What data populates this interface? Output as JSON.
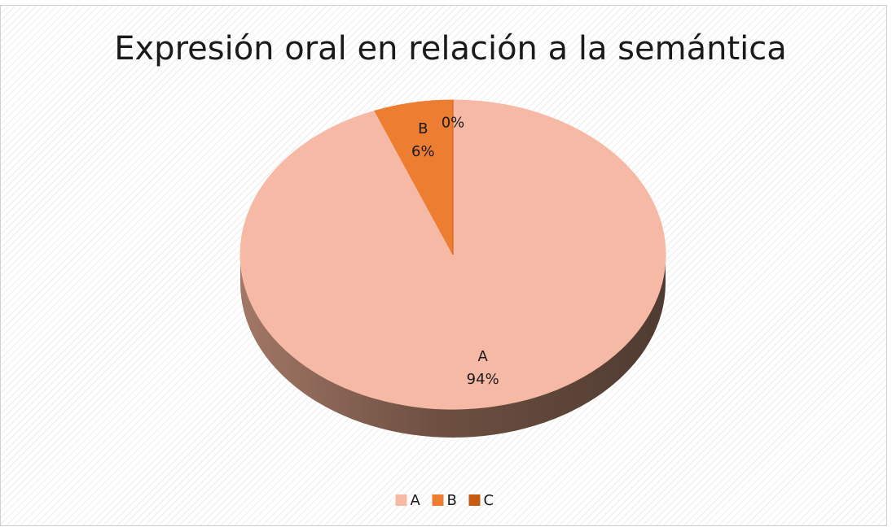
{
  "chart_data": {
    "type": "pie",
    "title": "Expresión oral en relación a la semántica",
    "categories": [
      "A",
      "B",
      "C"
    ],
    "values": [
      94,
      6,
      0
    ],
    "value_labels": [
      "94%",
      "6%",
      "0%"
    ],
    "colors": [
      "#f6b9a5",
      "#ed7d31",
      "#c55a11"
    ],
    "legend": "bottom"
  }
}
